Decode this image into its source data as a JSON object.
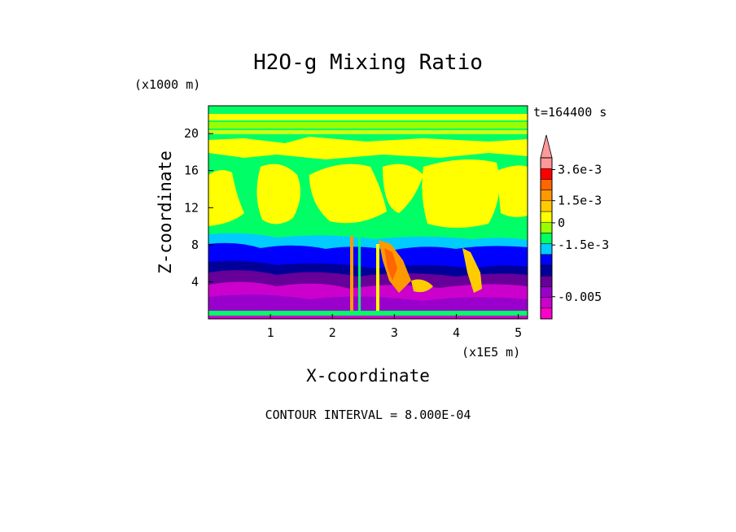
{
  "chart_data": {
    "type": "heatmap",
    "title": "H2O-g Mixing Ratio",
    "xlabel": "X-coordinate",
    "ylabel": "Z-coordinate",
    "x_unit": "(x1E5 m)",
    "y_unit": "(x1000 m)",
    "time_label": "t=164400 s",
    "footer": "CONTOUR INTERVAL = 8.000E-04",
    "xlim": [
      0,
      5.15
    ],
    "ylim": [
      0,
      23
    ],
    "x_ticks": [
      1,
      2,
      3,
      4,
      5
    ],
    "x_tick_labels": [
      "1",
      "2",
      "3",
      "4",
      "5"
    ],
    "y_ticks": [
      4,
      8,
      12,
      16,
      20
    ],
    "y_tick_labels": [
      "4",
      "8",
      "12",
      "16",
      "20"
    ],
    "colorbar": {
      "labels": [
        {
          "text": "3.6e-3",
          "value": 0.0036
        },
        {
          "text": "1.5e-3",
          "value": 0.0015
        },
        {
          "text": "0",
          "value": 0
        },
        {
          "text": "-1.5e-3",
          "value": -0.0015
        },
        {
          "text": "-0.005",
          "value": -0.005
        }
      ],
      "colors": [
        "#ff00cc",
        "#cc00cc",
        "#9900cc",
        "#660099",
        "#000099",
        "#0000ff",
        "#00ccff",
        "#00ff66",
        "#99ff00",
        "#ffff00",
        "#ffcc00",
        "#ff9900",
        "#ff6600",
        "#ff0000",
        "#ff9999"
      ]
    }
  }
}
